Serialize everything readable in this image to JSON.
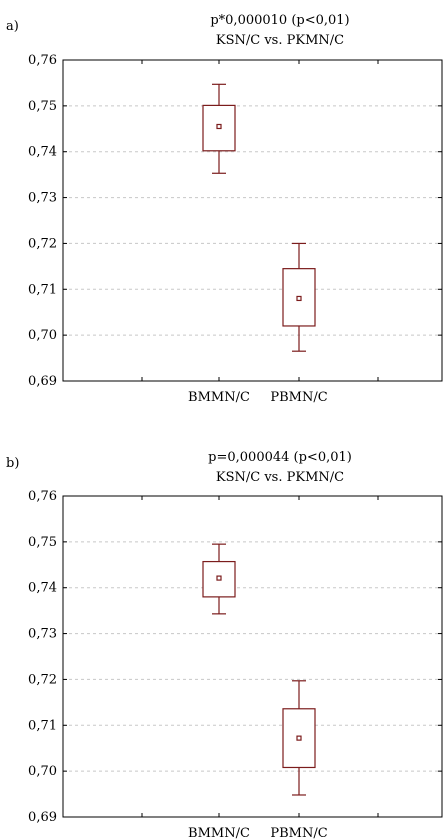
{
  "chart_data": [
    {
      "type": "box",
      "panel_label": "a)",
      "title_lines": [
        "p*0,000010 (p<0,01)",
        "KSN/C vs. PKMN/C"
      ],
      "categories": [
        "BMMN/C",
        "PBMN/C"
      ],
      "ylim": [
        0.69,
        0.76
      ],
      "yticks": [
        "0,69",
        "0,70",
        "0,71",
        "0,72",
        "0,73",
        "0,74",
        "0,75",
        "0,76"
      ],
      "grid": true,
      "boxes": [
        {
          "name": "BMMN/C",
          "whisker_low": 0.7353,
          "q1": 0.7402,
          "mean": 0.7455,
          "q3": 0.7501,
          "whisker_high": 0.7547
        },
        {
          "name": "PBMN/C",
          "whisker_low": 0.6965,
          "q1": 0.702,
          "mean": 0.708,
          "q3": 0.7145,
          "whisker_high": 0.72
        }
      ]
    },
    {
      "type": "box",
      "panel_label": "b)",
      "title_lines": [
        "p=0,000044 (p<0,01)",
        "KSN/C vs. PKMN/C"
      ],
      "categories": [
        "BMMN/C",
        "PBMN/C"
      ],
      "ylim": [
        0.69,
        0.76
      ],
      "yticks": [
        "0,69",
        "0,70",
        "0,71",
        "0,72",
        "0,73",
        "0,74",
        "0,75",
        "0,76"
      ],
      "grid": true,
      "boxes": [
        {
          "name": "BMMN/C",
          "whisker_low": 0.7343,
          "q1": 0.738,
          "mean": 0.7421,
          "q3": 0.7457,
          "whisker_high": 0.7495
        },
        {
          "name": "PBMN/C",
          "whisker_low": 0.6948,
          "q1": 0.7008,
          "mean": 0.7072,
          "q3": 0.7136,
          "whisker_high": 0.7197
        }
      ]
    }
  ]
}
